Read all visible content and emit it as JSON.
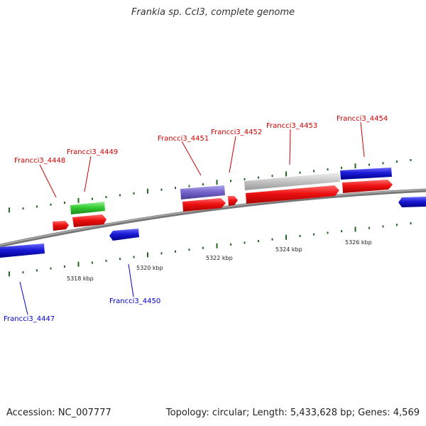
{
  "title": "Frankia sp. CcI3, complete genome",
  "footer": {
    "accession": "Accession: NC_007777",
    "info": "Topology: circular; Length: 5,433,628 bp; Genes: 4,569"
  },
  "colors": {
    "forward_label": "#cc0000",
    "reverse_label": "#0000cc",
    "red_feature": "#ee1111",
    "blue_feature": "#1a1ad6",
    "green_feature": "#33cc33",
    "lavender_feature": "#7766cc",
    "gray_feature": "#c8c8c8",
    "backbone": "#808080",
    "tick_green": "#226622"
  },
  "scale_ticks": [
    "5318 kbp",
    "5320 kbp",
    "5322 kbp",
    "5324 kbp",
    "5326 kbp"
  ],
  "gene_labels": [
    {
      "name": "Francci3_4448",
      "strand": "forward"
    },
    {
      "name": "Francci3_4449",
      "strand": "forward"
    },
    {
      "name": "Francci3_4451",
      "strand": "forward"
    },
    {
      "name": "Francci3_4452",
      "strand": "forward"
    },
    {
      "name": "Francci3_4453",
      "strand": "forward"
    },
    {
      "name": "Francci3_4454",
      "strand": "forward"
    },
    {
      "name": "Francci3_4447",
      "strand": "reverse"
    },
    {
      "name": "Francci3_4450",
      "strand": "reverse"
    }
  ]
}
